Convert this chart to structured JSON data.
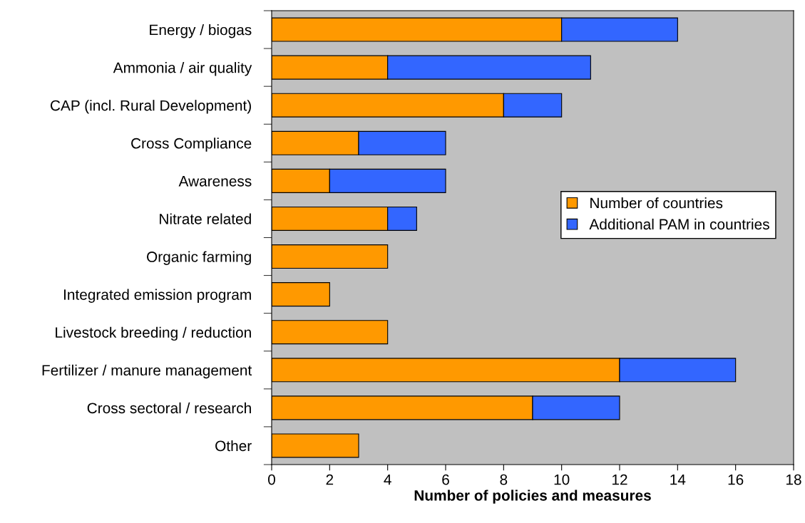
{
  "chart_data": {
    "type": "bar",
    "orientation": "horizontal",
    "stacked": true,
    "categories": [
      "Energy / biogas",
      "Ammonia / air quality",
      "CAP (incl. Rural Development)",
      "Cross Compliance",
      "Awareness",
      "Nitrate related",
      "Organic farming",
      "Integrated emission program",
      "Livestock breeding / reduction",
      "Fertilizer / manure management",
      "Cross sectoral / research",
      "Other"
    ],
    "series": [
      {
        "name": "Number of countries",
        "color": "#ff9900",
        "values": [
          10,
          4,
          8,
          3,
          2,
          4,
          4,
          2,
          4,
          12,
          9,
          3
        ]
      },
      {
        "name": "Additional PAM in countries",
        "color": "#3366ff",
        "values": [
          4,
          7,
          2,
          3,
          4,
          1,
          null,
          null,
          null,
          4,
          3,
          null
        ]
      }
    ],
    "xlabel": "Number of policies and measures",
    "xlim": [
      0,
      18
    ],
    "xticks": [
      0,
      2,
      4,
      6,
      8,
      10,
      12,
      14,
      16,
      18
    ],
    "grid": false,
    "legend": "right"
  }
}
